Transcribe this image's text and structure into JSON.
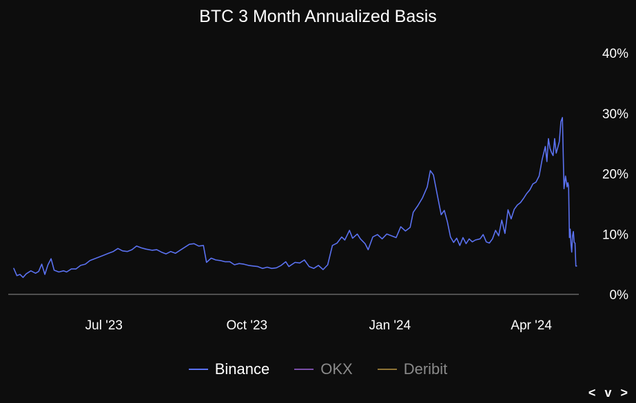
{
  "chart_data": {
    "type": "line",
    "title": "BTC 3 Month Annualized Basis",
    "x_tick_labels": [
      "Jul '23",
      "Oct '23",
      "Jan '24",
      "Apr '24"
    ],
    "y_tick_labels": [
      "0%",
      "10%",
      "20%",
      "30%",
      "40%"
    ],
    "ylim": [
      0,
      40
    ],
    "y_unit": "%",
    "y_axis_side": "right",
    "grid": false,
    "legend_position": "bottom-center",
    "x_range": [
      "2023-05-04",
      "2024-04-28"
    ],
    "series": [
      {
        "name": "Binance",
        "color": "#5b72f2",
        "points": [
          [
            "2023-05-04",
            4.3
          ],
          [
            "2023-05-06",
            3.1
          ],
          [
            "2023-05-08",
            3.3
          ],
          [
            "2023-05-10",
            2.8
          ],
          [
            "2023-05-12",
            3.4
          ],
          [
            "2023-05-15",
            3.9
          ],
          [
            "2023-05-18",
            3.5
          ],
          [
            "2023-05-20",
            3.8
          ],
          [
            "2023-05-22",
            5.0
          ],
          [
            "2023-05-24",
            3.3
          ],
          [
            "2023-05-26",
            4.9
          ],
          [
            "2023-05-28",
            5.9
          ],
          [
            "2023-05-30",
            4.0
          ],
          [
            "2023-06-02",
            3.7
          ],
          [
            "2023-06-05",
            3.9
          ],
          [
            "2023-06-07",
            3.7
          ],
          [
            "2023-06-10",
            4.2
          ],
          [
            "2023-06-13",
            4.2
          ],
          [
            "2023-06-16",
            4.8
          ],
          [
            "2023-06-19",
            5.0
          ],
          [
            "2023-06-22",
            5.6
          ],
          [
            "2023-06-25",
            5.9
          ],
          [
            "2023-06-28",
            6.2
          ],
          [
            "2023-07-01",
            6.5
          ],
          [
            "2023-07-04",
            6.8
          ],
          [
            "2023-07-07",
            7.1
          ],
          [
            "2023-07-10",
            7.6
          ],
          [
            "2023-07-13",
            7.2
          ],
          [
            "2023-07-16",
            7.1
          ],
          [
            "2023-07-19",
            7.4
          ],
          [
            "2023-07-22",
            8.0
          ],
          [
            "2023-07-25",
            7.7
          ],
          [
            "2023-07-28",
            7.5
          ],
          [
            "2023-08-01",
            7.3
          ],
          [
            "2023-08-04",
            7.4
          ],
          [
            "2023-08-07",
            7.0
          ],
          [
            "2023-08-10",
            6.7
          ],
          [
            "2023-08-13",
            7.1
          ],
          [
            "2023-08-16",
            6.8
          ],
          [
            "2023-08-19",
            7.3
          ],
          [
            "2023-08-22",
            7.8
          ],
          [
            "2023-08-25",
            8.3
          ],
          [
            "2023-08-28",
            8.4
          ],
          [
            "2023-08-31",
            8.0
          ],
          [
            "2023-09-03",
            8.1
          ],
          [
            "2023-09-05",
            5.3
          ],
          [
            "2023-09-08",
            6.0
          ],
          [
            "2023-09-11",
            5.7
          ],
          [
            "2023-09-14",
            5.6
          ],
          [
            "2023-09-17",
            5.4
          ],
          [
            "2023-09-20",
            5.4
          ],
          [
            "2023-09-23",
            4.9
          ],
          [
            "2023-09-26",
            5.1
          ],
          [
            "2023-09-29",
            5.0
          ],
          [
            "2023-10-02",
            4.8
          ],
          [
            "2023-10-05",
            4.7
          ],
          [
            "2023-10-08",
            4.6
          ],
          [
            "2023-10-11",
            4.3
          ],
          [
            "2023-10-14",
            4.5
          ],
          [
            "2023-10-17",
            4.3
          ],
          [
            "2023-10-20",
            4.4
          ],
          [
            "2023-10-23",
            4.8
          ],
          [
            "2023-10-26",
            5.4
          ],
          [
            "2023-10-28",
            4.6
          ],
          [
            "2023-11-01",
            5.3
          ],
          [
            "2023-11-04",
            5.2
          ],
          [
            "2023-11-07",
            5.7
          ],
          [
            "2023-11-10",
            4.6
          ],
          [
            "2023-11-13",
            4.3
          ],
          [
            "2023-11-16",
            4.8
          ],
          [
            "2023-11-19",
            4.1
          ],
          [
            "2023-11-22",
            4.9
          ],
          [
            "2023-11-25",
            8.1
          ],
          [
            "2023-11-28",
            8.5
          ],
          [
            "2023-12-01",
            9.5
          ],
          [
            "2023-12-03",
            9.0
          ],
          [
            "2023-12-06",
            10.6
          ],
          [
            "2023-12-08",
            9.3
          ],
          [
            "2023-12-11",
            10.0
          ],
          [
            "2023-12-13",
            9.2
          ],
          [
            "2023-12-16",
            8.4
          ],
          [
            "2023-12-18",
            7.4
          ],
          [
            "2023-12-21",
            9.5
          ],
          [
            "2023-12-24",
            9.9
          ],
          [
            "2023-12-27",
            9.2
          ],
          [
            "2023-12-30",
            10.0
          ],
          [
            "2024-01-02",
            9.7
          ],
          [
            "2024-01-05",
            9.4
          ],
          [
            "2024-01-08",
            11.2
          ],
          [
            "2024-01-11",
            10.5
          ],
          [
            "2024-01-14",
            11.1
          ],
          [
            "2024-01-16",
            13.6
          ],
          [
            "2024-01-19",
            14.7
          ],
          [
            "2024-01-22",
            16.0
          ],
          [
            "2024-01-25",
            17.8
          ],
          [
            "2024-01-27",
            20.5
          ],
          [
            "2024-01-29",
            19.8
          ],
          [
            "2024-02-01",
            15.8
          ],
          [
            "2024-02-03",
            13.2
          ],
          [
            "2024-02-05",
            13.9
          ],
          [
            "2024-02-07",
            12.0
          ],
          [
            "2024-02-09",
            9.5
          ],
          [
            "2024-02-11",
            8.6
          ],
          [
            "2024-02-13",
            9.3
          ],
          [
            "2024-02-15",
            8.1
          ],
          [
            "2024-02-17",
            9.4
          ],
          [
            "2024-02-19",
            8.4
          ],
          [
            "2024-02-21",
            9.2
          ],
          [
            "2024-02-23",
            8.7
          ],
          [
            "2024-02-25",
            9.0
          ],
          [
            "2024-02-28",
            9.2
          ],
          [
            "2024-03-01",
            9.9
          ],
          [
            "2024-03-03",
            8.7
          ],
          [
            "2024-03-05",
            8.5
          ],
          [
            "2024-03-07",
            9.2
          ],
          [
            "2024-03-09",
            10.6
          ],
          [
            "2024-03-11",
            9.7
          ],
          [
            "2024-03-13",
            12.3
          ],
          [
            "2024-03-15",
            10.1
          ],
          [
            "2024-03-17",
            14.0
          ],
          [
            "2024-03-19",
            12.5
          ],
          [
            "2024-03-21",
            14.1
          ],
          [
            "2024-03-23",
            14.8
          ],
          [
            "2024-03-25",
            15.2
          ],
          [
            "2024-03-27",
            15.9
          ],
          [
            "2024-03-29",
            16.7
          ],
          [
            "2024-03-31",
            17.3
          ],
          [
            "2024-04-02",
            18.3
          ],
          [
            "2024-04-04",
            18.6
          ],
          [
            "2024-04-06",
            19.6
          ],
          [
            "2024-04-08",
            22.4
          ],
          [
            "2024-04-10",
            24.5
          ],
          [
            "2024-04-11",
            22.0
          ],
          [
            "2024-04-12",
            25.8
          ],
          [
            "2024-04-13",
            24.2
          ],
          [
            "2024-04-14",
            23.5
          ],
          [
            "2024-04-15",
            23.0
          ],
          [
            "2024-04-16",
            25.8
          ],
          [
            "2024-04-17",
            23.4
          ],
          [
            "2024-04-18",
            24.3
          ],
          [
            "2024-04-19",
            25.3
          ],
          [
            "2024-04-20",
            28.6
          ],
          [
            "2024-04-21",
            29.3
          ],
          [
            "2024-04-22",
            17.5
          ],
          [
            "2024-04-23",
            19.6
          ],
          [
            "2024-04-24",
            17.8
          ],
          [
            "2024-04-24",
            18.5
          ],
          [
            "2024-04-25",
            17.9
          ],
          [
            "2024-04-25",
            9.4
          ],
          [
            "2024-04-26",
            10.8
          ],
          [
            "2024-04-26",
            8.2
          ],
          [
            "2024-04-27",
            7.0
          ],
          [
            "2024-04-27",
            9.7
          ],
          [
            "2024-04-27",
            10.4
          ],
          [
            "2024-04-28",
            8.6
          ],
          [
            "2024-04-28",
            8.5
          ],
          [
            "2024-04-28",
            4.7
          ],
          [
            "2024-04-28",
            4.7
          ]
        ]
      },
      {
        "name": "OKX",
        "color": "#7a4ea8",
        "points": []
      },
      {
        "name": "Deribit",
        "color": "#8f7435",
        "points": []
      }
    ]
  },
  "controls": {
    "prev": "<",
    "down": "v",
    "next": ">"
  }
}
